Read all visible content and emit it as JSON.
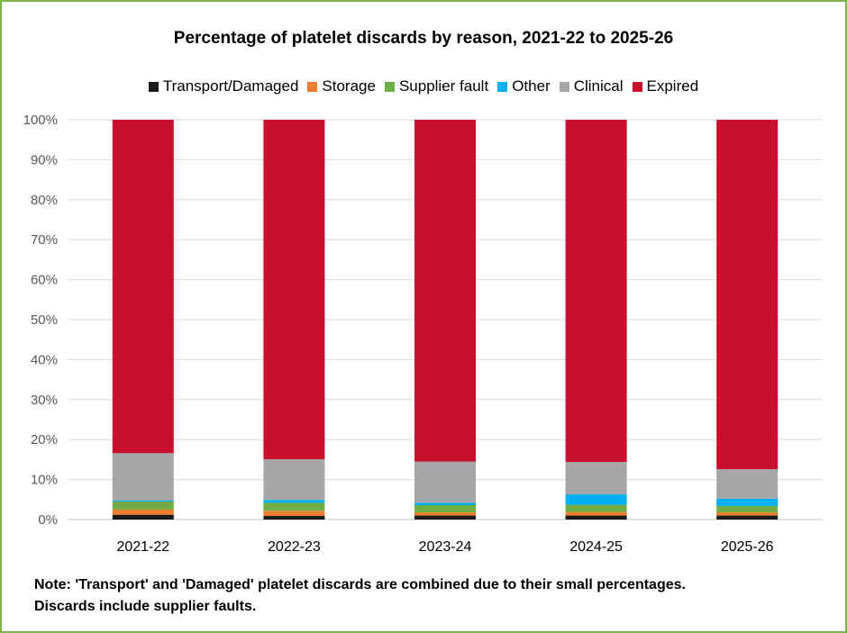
{
  "chart_data": {
    "type": "bar",
    "stacked": true,
    "title": "Percentage of platelet discards by reason, 2021-22 to 2025-26",
    "categories": [
      "2021-22",
      "2022-23",
      "2023-24",
      "2024-25",
      "2025-26"
    ],
    "series": [
      {
        "name": "Transport/Damaged",
        "color": "#1a1a1a",
        "values": [
          1.2,
          0.9,
          1.0,
          1.0,
          1.0
        ]
      },
      {
        "name": "Storage",
        "color": "#ed7d31",
        "values": [
          1.3,
          1.3,
          0.8,
          0.9,
          0.8
        ]
      },
      {
        "name": "Supplier fault",
        "color": "#70ad47",
        "values": [
          2.0,
          2.0,
          1.8,
          1.8,
          1.6
        ]
      },
      {
        "name": "Other",
        "color": "#00b0f0",
        "values": [
          0.3,
          0.7,
          0.6,
          2.6,
          1.8
        ]
      },
      {
        "name": "Clinical",
        "color": "#a6a6a6",
        "values": [
          11.8,
          10.2,
          10.3,
          8.1,
          7.4
        ]
      },
      {
        "name": "Expired",
        "color": "#c8102e",
        "values": [
          83.4,
          84.9,
          85.5,
          85.6,
          87.4
        ]
      }
    ],
    "ylim": [
      0,
      100
    ],
    "yticks": [
      "0%",
      "10%",
      "20%",
      "30%",
      "40%",
      "50%",
      "60%",
      "70%",
      "80%",
      "90%",
      "100%"
    ],
    "grid": true,
    "legend_position": "top"
  },
  "note": {
    "line1": "Note: 'Transport' and 'Damaged' platelet discards are combined due to their small percentages.",
    "line2": "Discards include supplier faults."
  },
  "colors": {
    "frame": "#7ab648",
    "grid": "#d9d9d9"
  }
}
